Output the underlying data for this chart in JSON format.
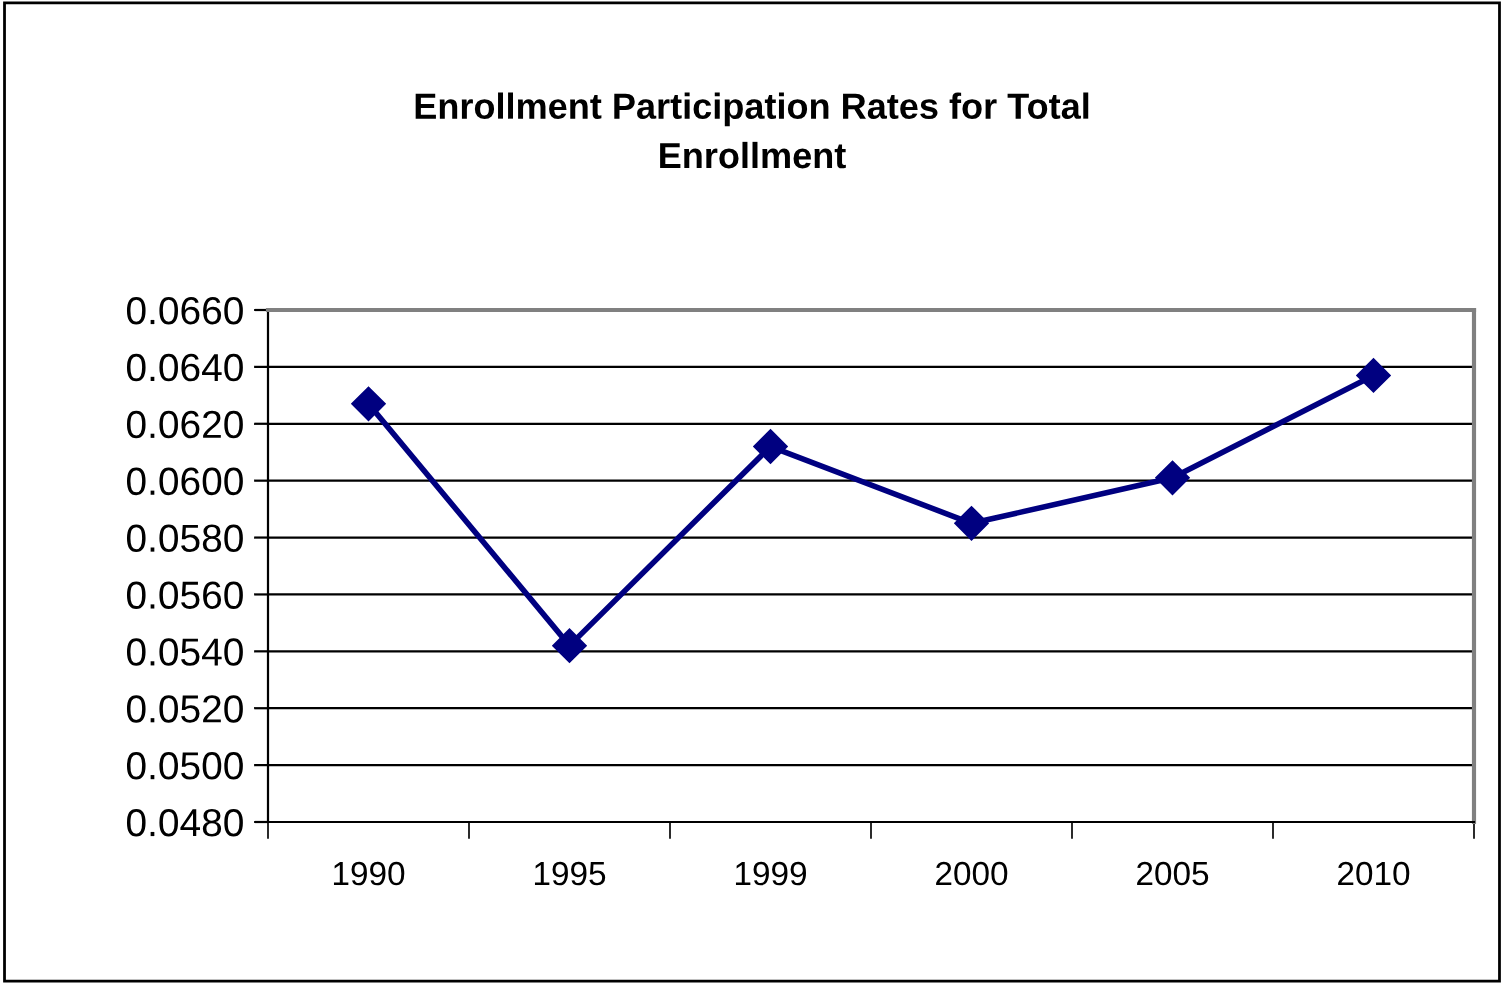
{
  "chart_data": {
    "type": "line",
    "title": "Enrollment Participation Rates for Total\nEnrollment",
    "categories": [
      "1990",
      "1995",
      "1999",
      "2000",
      "2005",
      "2010"
    ],
    "series": [
      {
        "color": "#000080",
        "values": [
          0.0627,
          0.0542,
          0.0612,
          0.0585,
          0.0601,
          0.0637
        ]
      }
    ],
    "ylim": [
      0.048,
      0.066
    ],
    "yticks": [
      {
        "value": 0.048,
        "label": "0.0480"
      },
      {
        "value": 0.05,
        "label": "0.0500"
      },
      {
        "value": 0.052,
        "label": "0.0520"
      },
      {
        "value": 0.054,
        "label": "0.0540"
      },
      {
        "value": 0.056,
        "label": "0.0560"
      },
      {
        "value": 0.058,
        "label": "0.0580"
      },
      {
        "value": 0.06,
        "label": "0.0600"
      },
      {
        "value": 0.062,
        "label": "0.0620"
      },
      {
        "value": 0.064,
        "label": "0.0640"
      },
      {
        "value": 0.066,
        "label": "0.0660"
      }
    ],
    "grid": "y",
    "marker": "diamond",
    "line_style": "solid"
  }
}
